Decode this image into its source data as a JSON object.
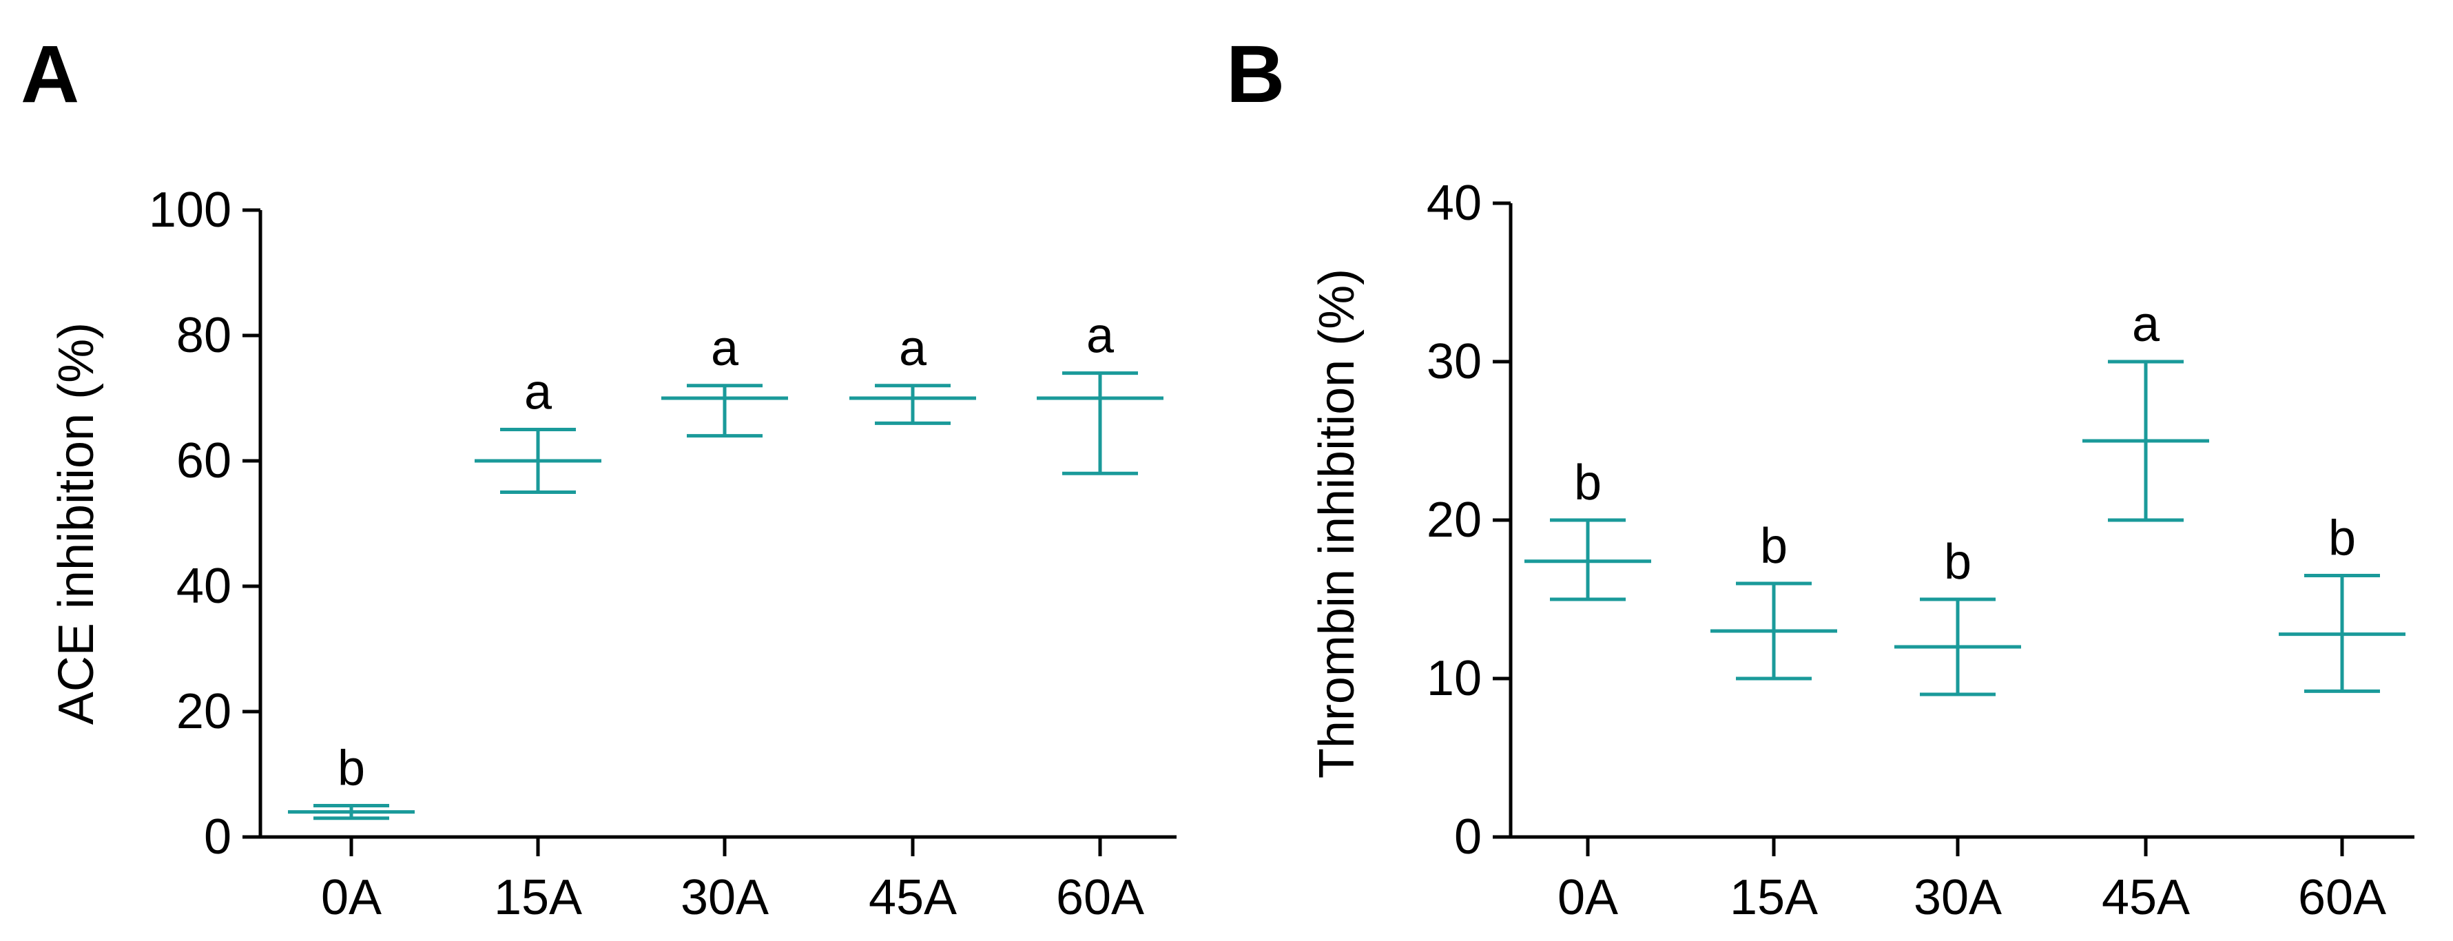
{
  "chart_data": [
    {
      "panel_label": "A",
      "type": "scatter",
      "style": "mean-with-error-bars",
      "color": "#1A9A9A",
      "categories": [
        "0A",
        "15A",
        "30A",
        "45A",
        "60A"
      ],
      "ylabel": "ACE inhibition (%)",
      "xlabel": "",
      "ylim": [
        0,
        100
      ],
      "yticks": [
        0,
        20,
        40,
        60,
        80,
        100
      ],
      "grid": false,
      "series": [
        {
          "name": "ACE inhibition",
          "mean": [
            4,
            60,
            70,
            70,
            70
          ],
          "upper": [
            5,
            65,
            72,
            72,
            74
          ],
          "lower": [
            3,
            55,
            64,
            66,
            58
          ],
          "letters": [
            "b",
            "a",
            "a",
            "a",
            "a"
          ]
        }
      ]
    },
    {
      "panel_label": "B",
      "type": "scatter",
      "style": "mean-with-error-bars",
      "color": "#1A9A9A",
      "categories": [
        "0A",
        "15A",
        "30A",
        "45A",
        "60A"
      ],
      "ylabel": "Thrombin inhibition (%)",
      "xlabel": "",
      "ylim": [
        0,
        40
      ],
      "yticks": [
        0,
        10,
        20,
        30,
        40
      ],
      "grid": false,
      "series": [
        {
          "name": "Thrombin inhibition",
          "mean": [
            17.4,
            13,
            12,
            25,
            12.8
          ],
          "upper": [
            20,
            16,
            15,
            30,
            16.5
          ],
          "lower": [
            15,
            10,
            9,
            20,
            9.2
          ],
          "letters": [
            "b",
            "b",
            "b",
            "a",
            "b"
          ]
        }
      ]
    }
  ]
}
